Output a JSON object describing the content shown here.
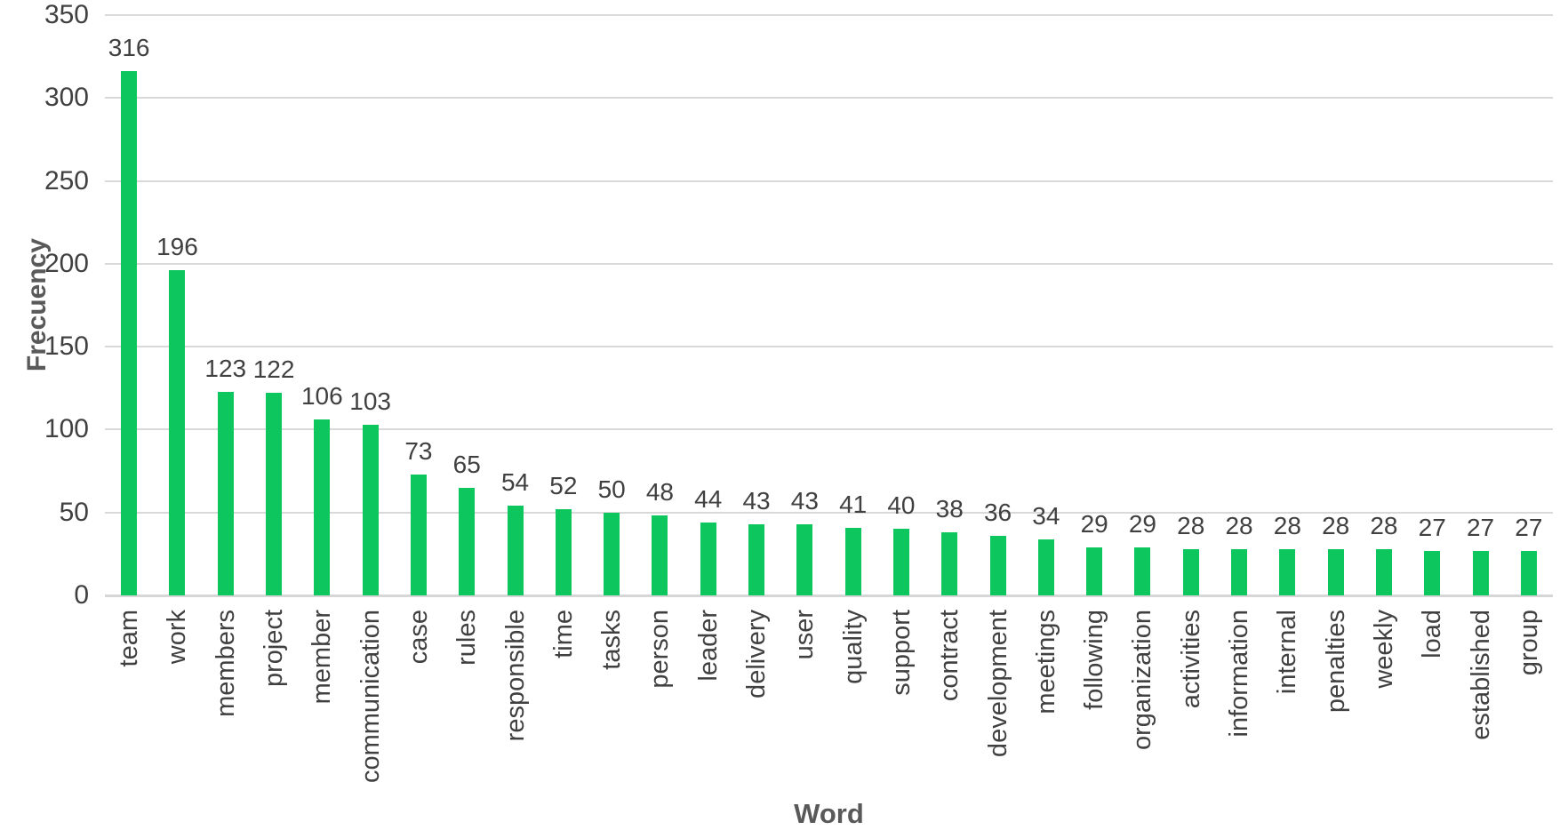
{
  "chart_data": {
    "type": "bar",
    "title": "",
    "xlabel": "Word",
    "ylabel": "Frecuency",
    "categories": [
      "team",
      "work",
      "members",
      "project",
      "member",
      "communication",
      "case",
      "rules",
      "responsible",
      "time",
      "tasks",
      "person",
      "leader",
      "delivery",
      "user",
      "quality",
      "support",
      "contract",
      "development",
      "meetings",
      "following",
      "organization",
      "activities",
      "information",
      "internal",
      "penalties",
      "weekly",
      "load",
      "established",
      "group"
    ],
    "values": [
      316,
      196,
      123,
      122,
      106,
      103,
      73,
      65,
      54,
      52,
      50,
      48,
      44,
      43,
      43,
      41,
      40,
      38,
      36,
      34,
      29,
      29,
      28,
      28,
      28,
      28,
      28,
      27,
      27,
      27
    ],
    "ylim": [
      0,
      350
    ],
    "yticks": [
      0,
      50,
      100,
      150,
      200,
      250,
      300,
      350
    ],
    "grid": true,
    "legend": false,
    "data_labels": true,
    "bar_orientation": "vertical",
    "category_label_rotation": -90
  },
  "colors": {
    "bar": "#0dc75e",
    "gridline": "#d9d9d9",
    "baseline": "#d6d6d6",
    "tick_label": "#404040",
    "value_label": "#404040",
    "category_label": "#404040",
    "axis_title": "#595959",
    "background": "#ffffff"
  }
}
